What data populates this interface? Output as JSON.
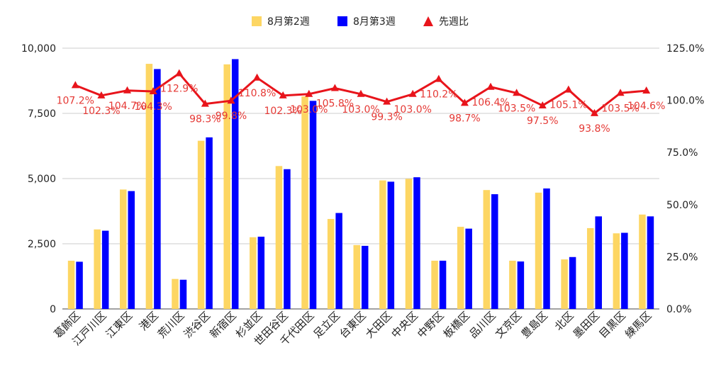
{
  "chart_data": {
    "type": "bar",
    "categories": [
      "葛飾区",
      "江戸川区",
      "江東区",
      "港区",
      "荒川区",
      "渋谷区",
      "新宿区",
      "杉並区",
      "世田谷区",
      "千代田区",
      "足立区",
      "台東区",
      "大田区",
      "中央区",
      "中野区",
      "板橋区",
      "品川区",
      "文京区",
      "豊島区",
      "北区",
      "墨田区",
      "目黒区",
      "練馬区"
    ],
    "series": [
      {
        "name": "8月第2週",
        "type": "bar",
        "color": "#fdd663",
        "values": [
          1850,
          3050,
          4580,
          9400,
          1150,
          6450,
          9380,
          2750,
          5480,
          8150,
          3450,
          2450,
          4930,
          4990,
          1850,
          3150,
          4560,
          1850,
          4460,
          1900,
          3100,
          2900,
          3620
        ]
      },
      {
        "name": "8月第3週",
        "type": "bar",
        "color": "#0000ff",
        "values": [
          1810,
          3000,
          4520,
          9200,
          1120,
          6580,
          9580,
          2770,
          5360,
          7980,
          3680,
          2420,
          4880,
          5050,
          1850,
          3080,
          4400,
          1820,
          4620,
          1990,
          3550,
          2920,
          3550
        ]
      },
      {
        "name": "先週比",
        "type": "line",
        "color": "#e8141b",
        "axis": "right",
        "values": [
          107.2,
          102.3,
          104.7,
          104.3,
          112.9,
          98.3,
          99.8,
          110.8,
          102.3,
          103.0,
          105.8,
          103.0,
          99.3,
          103.0,
          110.2,
          98.7,
          106.4,
          103.5,
          97.5,
          105.1,
          93.8,
          103.5,
          104.6
        ],
        "labels": [
          "107.2%",
          "102.3%",
          "104.7%",
          "104.3%",
          "112.9%",
          "98.3%",
          "99.8%",
          "110.8%",
          "102.3%",
          "103.0%",
          "105.8%",
          "103.0%",
          "99.3%",
          "103.0%",
          "110.2%",
          "98.7%",
          "106.4%",
          "103.5%",
          "97.5%",
          "105.1%",
          "93.8%",
          "103.5%",
          "104.6%"
        ]
      }
    ],
    "y_left": {
      "min": 0,
      "max": 10000,
      "ticks": [
        "0",
        "2,500",
        "5,000",
        "7,500",
        "10,000"
      ]
    },
    "y_right": {
      "min": 0,
      "max": 125,
      "ticks": [
        "0.0%",
        "25.0%",
        "50.0%",
        "75.0%",
        "100.0%",
        "125.0%"
      ]
    },
    "grid": true,
    "legend_position": "top-center",
    "title": "",
    "xlabel": "",
    "ylabel": ""
  }
}
